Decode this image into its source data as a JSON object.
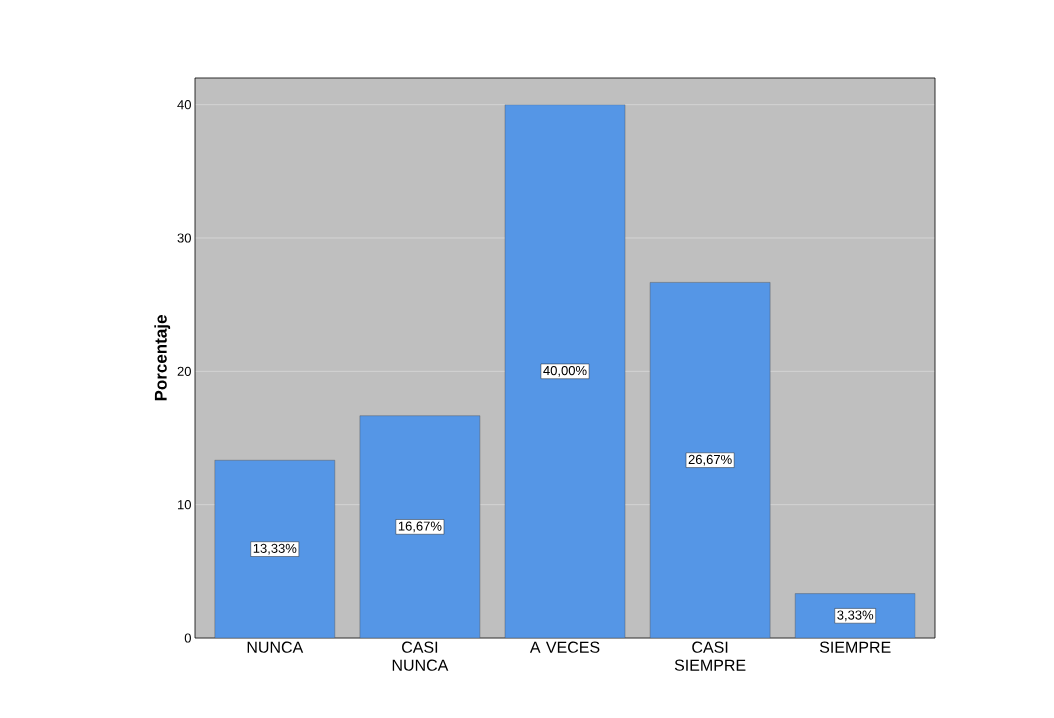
{
  "chart_data": {
    "type": "bar",
    "ylabel": "Porcentaje",
    "categories": [
      "NUNCA",
      "CASI NUNCA",
      "A VECES",
      "CASI SIEMPRE",
      "SIEMPRE"
    ],
    "values": [
      13.33,
      16.67,
      40.0,
      26.67,
      3.33
    ],
    "value_labels": [
      "13,33%",
      "16,67%",
      "40,00%",
      "26,67%",
      "3,33%"
    ],
    "color": "#5596e6",
    "ylim": [
      0,
      42
    ],
    "yticks": [
      0,
      10,
      20,
      30,
      40
    ],
    "grid": "y"
  }
}
